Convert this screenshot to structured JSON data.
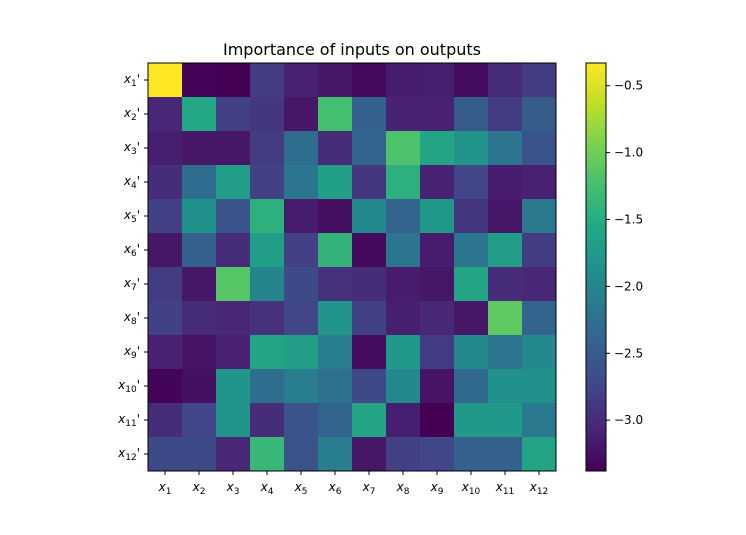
{
  "chart_data": {
    "type": "heatmap",
    "title": "Importance of inputs on outputs",
    "xlabel": "",
    "ylabel": "",
    "x_categories": [
      {
        "base": "x",
        "sub": "1"
      },
      {
        "base": "x",
        "sub": "2"
      },
      {
        "base": "x",
        "sub": "3"
      },
      {
        "base": "x",
        "sub": "4"
      },
      {
        "base": "x",
        "sub": "5"
      },
      {
        "base": "x",
        "sub": "6"
      },
      {
        "base": "x",
        "sub": "7"
      },
      {
        "base": "x",
        "sub": "8"
      },
      {
        "base": "x",
        "sub": "9"
      },
      {
        "base": "x",
        "sub": "10"
      },
      {
        "base": "x",
        "sub": "11"
      },
      {
        "base": "x",
        "sub": "12"
      }
    ],
    "y_categories": [
      {
        "base": "x",
        "sub": "1",
        "suffix": "'"
      },
      {
        "base": "x",
        "sub": "2",
        "suffix": "'"
      },
      {
        "base": "x",
        "sub": "3",
        "suffix": "'"
      },
      {
        "base": "x",
        "sub": "4",
        "suffix": "'"
      },
      {
        "base": "x",
        "sub": "5",
        "suffix": "'"
      },
      {
        "base": "x",
        "sub": "6",
        "suffix": "'"
      },
      {
        "base": "x",
        "sub": "7",
        "suffix": "'"
      },
      {
        "base": "x",
        "sub": "8",
        "suffix": "'"
      },
      {
        "base": "x",
        "sub": "9",
        "suffix": "'"
      },
      {
        "base": "x",
        "sub": "10",
        "suffix": "'"
      },
      {
        "base": "x",
        "sub": "11",
        "suffix": "'"
      },
      {
        "base": "x",
        "sub": "12",
        "suffix": "'"
      }
    ],
    "values": [
      [
        -0.33,
        -3.35,
        -3.38,
        -2.85,
        -3.1,
        -3.2,
        -3.3,
        -3.15,
        -3.12,
        -3.28,
        -3.0,
        -2.85
      ],
      [
        -3.05,
        -1.55,
        -2.8,
        -2.9,
        -3.2,
        -1.25,
        -2.45,
        -3.08,
        -3.1,
        -2.5,
        -2.85,
        -2.5
      ],
      [
        -3.12,
        -3.2,
        -3.2,
        -2.85,
        -2.3,
        -3.0,
        -2.4,
        -1.2,
        -1.6,
        -1.8,
        -2.2,
        -2.6
      ],
      [
        -3.0,
        -2.3,
        -1.7,
        -2.8,
        -2.2,
        -1.65,
        -2.9,
        -1.45,
        -3.08,
        -2.75,
        -3.15,
        -3.1
      ],
      [
        -2.8,
        -1.85,
        -2.6,
        -1.45,
        -3.15,
        -3.25,
        -1.95,
        -2.4,
        -1.75,
        -2.9,
        -3.2,
        -2.15
      ],
      [
        -3.2,
        -2.45,
        -3.0,
        -1.7,
        -2.8,
        -1.4,
        -3.3,
        -2.2,
        -3.15,
        -2.2,
        -1.7,
        -2.85
      ],
      [
        -2.85,
        -3.2,
        -1.15,
        -2.0,
        -2.7,
        -2.95,
        -3.0,
        -3.15,
        -3.2,
        -1.6,
        -3.0,
        -3.05
      ],
      [
        -2.8,
        -3.0,
        -3.05,
        -2.95,
        -2.75,
        -1.8,
        -2.8,
        -3.12,
        -3.05,
        -3.2,
        -1.1,
        -2.4
      ],
      [
        -3.1,
        -3.22,
        -3.1,
        -1.6,
        -1.7,
        -2.1,
        -3.28,
        -1.75,
        -2.85,
        -1.95,
        -2.2,
        -1.95
      ],
      [
        -3.35,
        -3.25,
        -1.8,
        -2.3,
        -2.1,
        -2.25,
        -2.7,
        -1.95,
        -3.22,
        -2.35,
        -1.85,
        -1.85
      ],
      [
        -3.0,
        -2.75,
        -1.8,
        -3.0,
        -2.6,
        -2.4,
        -1.6,
        -3.12,
        -3.38,
        -1.75,
        -1.75,
        -2.15
      ],
      [
        -2.7,
        -2.7,
        -3.05,
        -1.35,
        -2.6,
        -2.1,
        -3.2,
        -2.8,
        -2.75,
        -2.45,
        -2.45,
        -1.6
      ]
    ],
    "vmin": -3.38,
    "vmax": -0.33,
    "colormap": "viridis",
    "colorbar": {
      "ticks": [
        -0.5,
        -1.0,
        -1.5,
        -2.0,
        -2.5,
        -3.0
      ],
      "tick_labels": [
        "−0.5",
        "−1.0",
        "−1.5",
        "−2.0",
        "−2.5",
        "−3.0"
      ]
    }
  }
}
